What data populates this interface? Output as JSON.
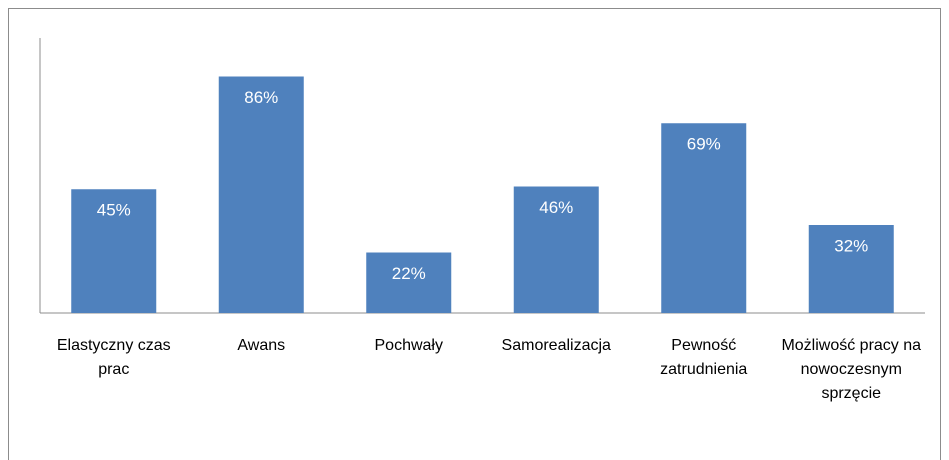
{
  "chart_data": {
    "type": "bar",
    "categories": [
      "Elastyczny czas prac",
      "Awans",
      "Pochwały",
      "Samorealizacja",
      "Pewność zatrudnienia",
      "Możliwość pracy na nowoczesnym sprzęcie"
    ],
    "values": [
      45,
      86,
      22,
      46,
      69,
      32
    ],
    "value_labels": [
      "45%",
      "86%",
      "22%",
      "46%",
      "69%",
      "32%"
    ],
    "color": "#4f81bd",
    "ylim": [
      0,
      100
    ]
  }
}
